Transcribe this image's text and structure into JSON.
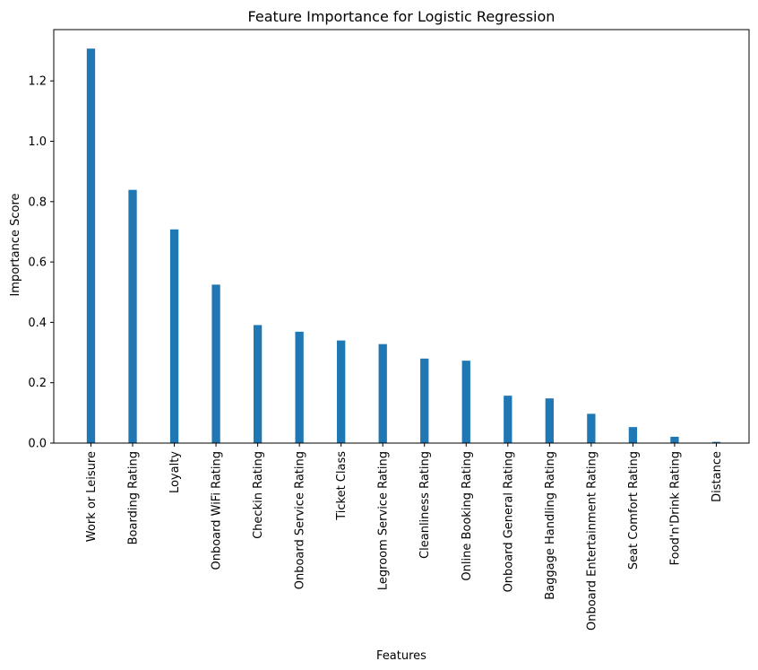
{
  "chart_data": {
    "type": "bar",
    "title": "Feature Importance for Logistic Regression",
    "xlabel": "Features",
    "ylabel": "Importance Score",
    "categories": [
      "Work or Leisure",
      "Boarding Rating",
      "Loyalty",
      "Onboard WiFi Rating",
      "Checkin Rating",
      "Onboard Service Rating",
      "Ticket Class",
      "Legroom Service Rating",
      "Cleanliness Rating",
      "Online Booking Rating",
      "Onboard General Rating",
      "Baggage Handling Rating",
      "Onboard Entertainment Rating",
      "Seat Comfort Rating",
      "Food'n'Drink Rating",
      "Distance"
    ],
    "values": [
      1.307,
      0.839,
      0.708,
      0.525,
      0.391,
      0.369,
      0.34,
      0.328,
      0.28,
      0.273,
      0.157,
      0.148,
      0.097,
      0.053,
      0.021,
      0.004
    ],
    "ylim": [
      0,
      1.37
    ],
    "yticks": [
      "0.0",
      "0.2",
      "0.4",
      "0.6",
      "0.8",
      "1.0",
      "1.2"
    ],
    "bar_color": "#1f77b4",
    "grid": false,
    "legend": "none"
  }
}
